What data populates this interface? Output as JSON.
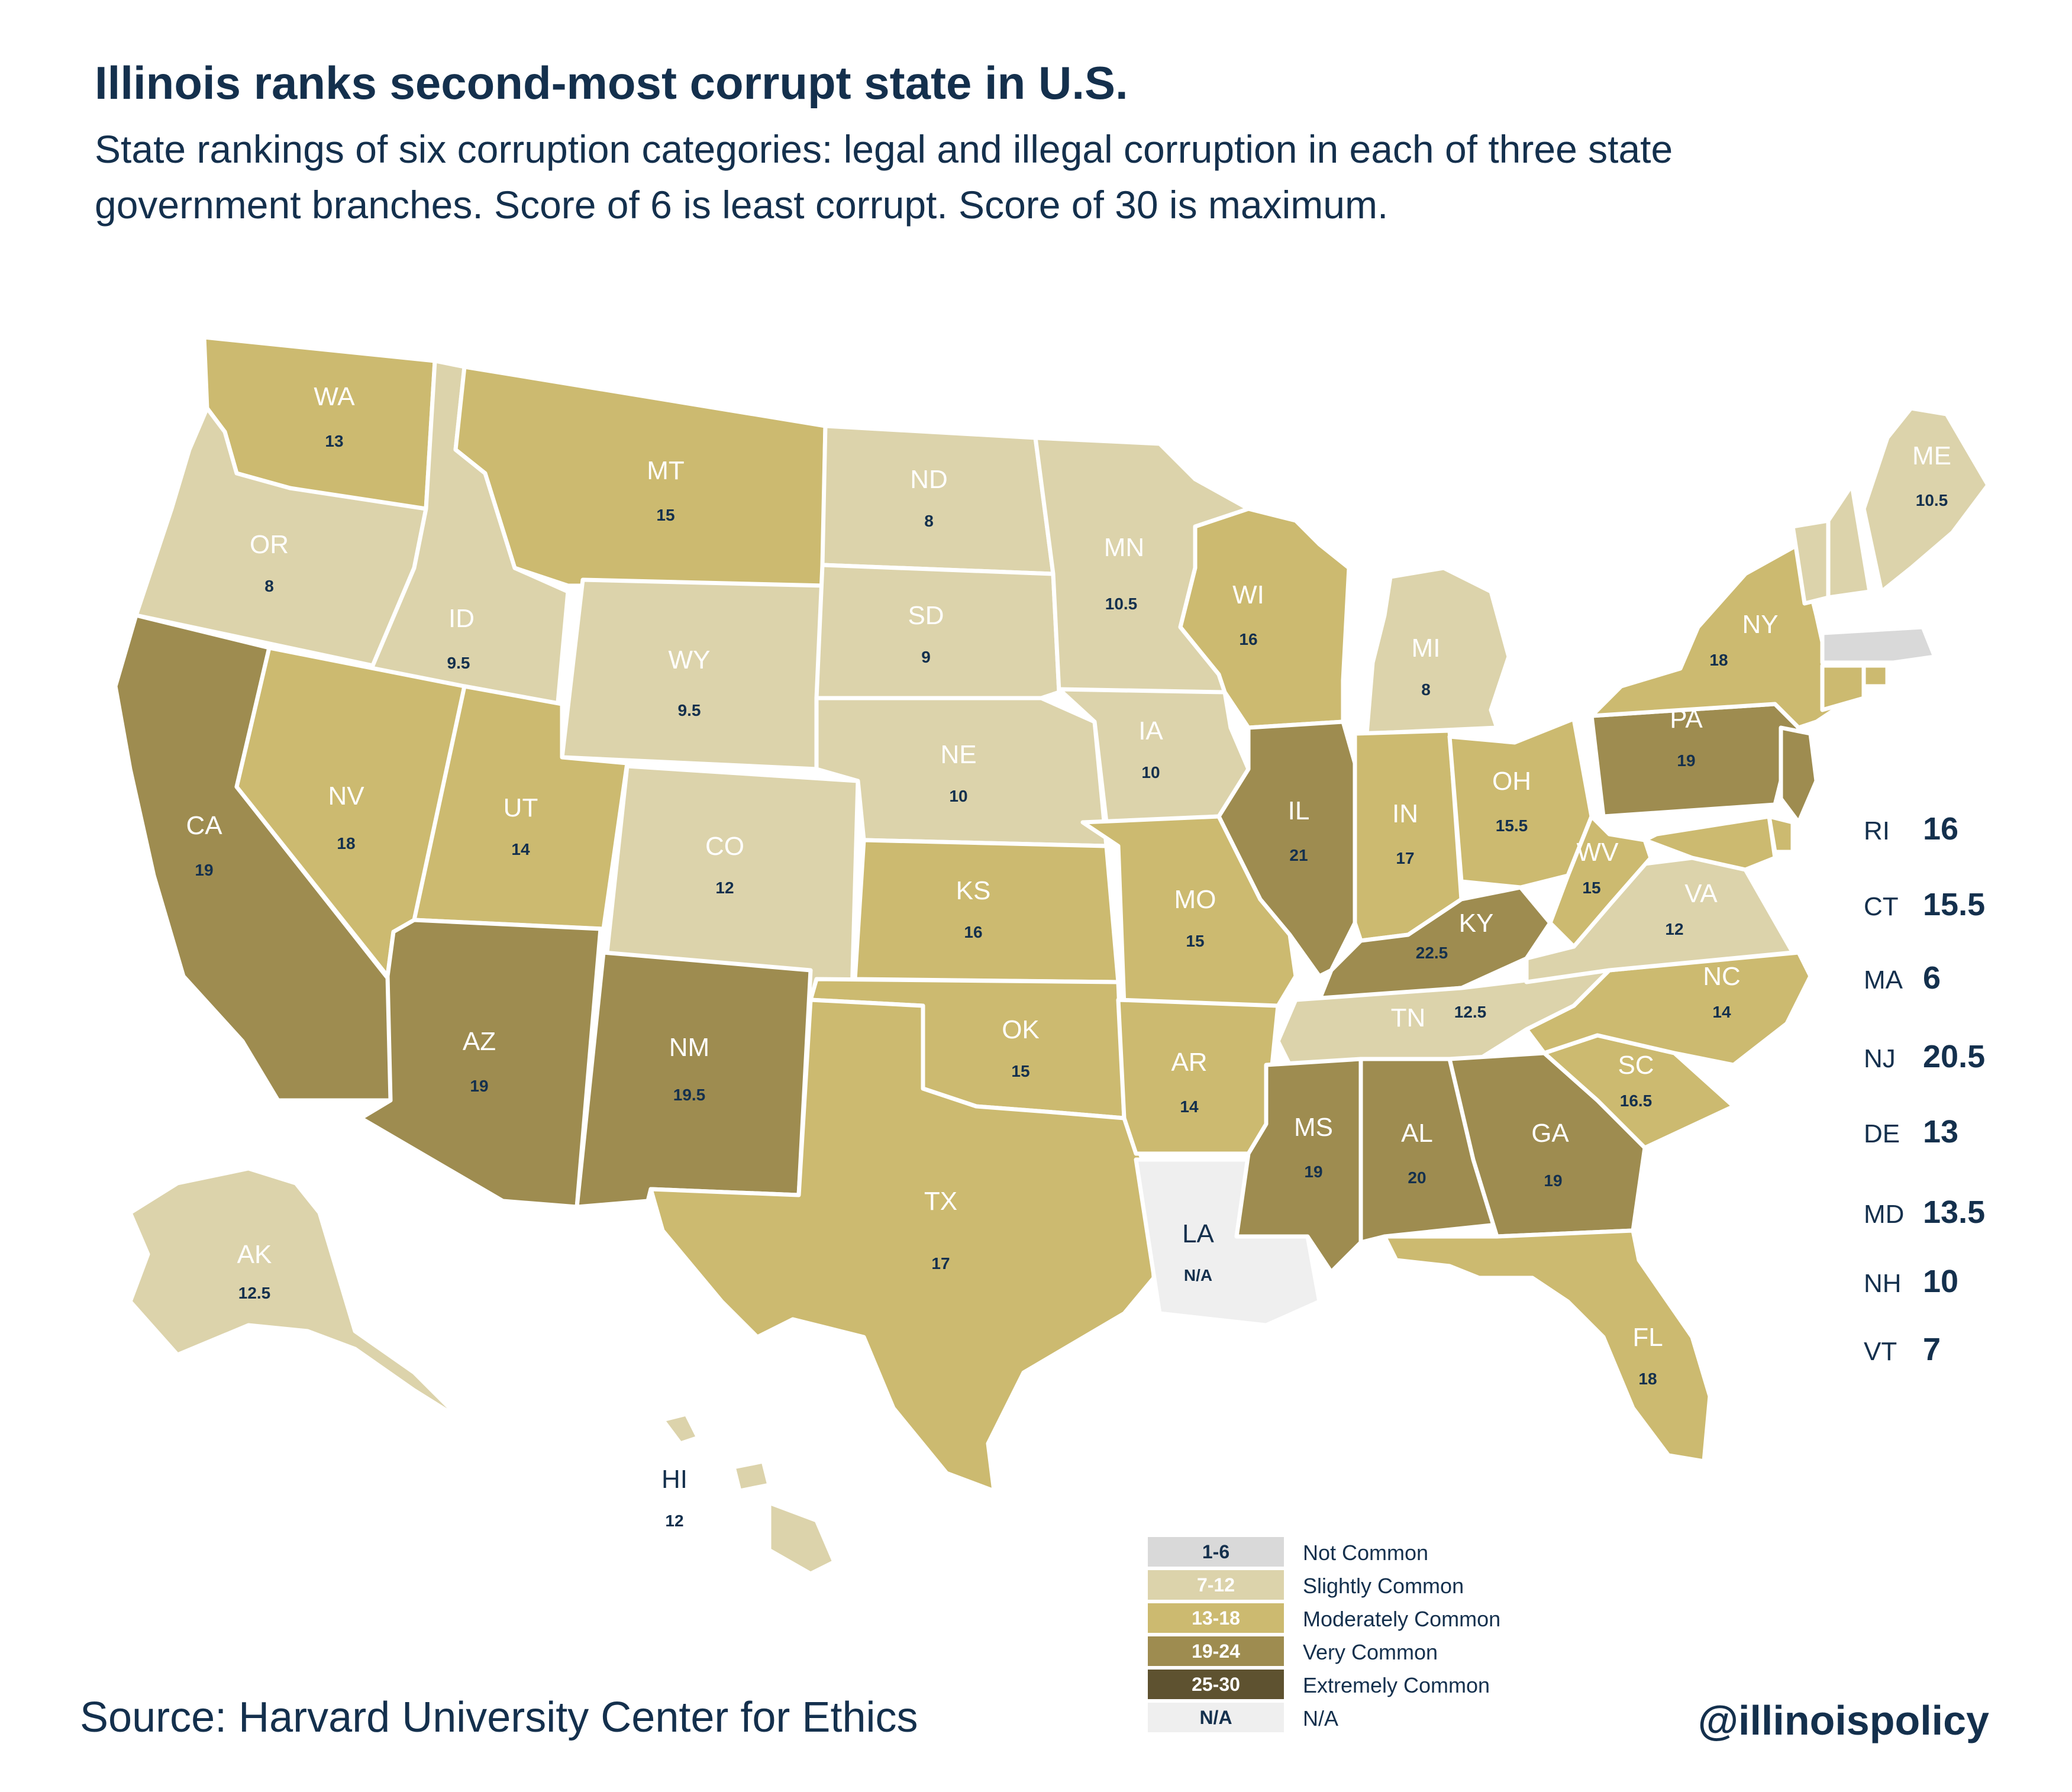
{
  "title": "Illinois ranks second-most corrupt state in U.S.",
  "subtitle": "State rankings of six corruption categories: legal and illegal corruption in each of three state government branches. Score of 6 is least corrupt. Score of 30 is maximum.",
  "colors": {
    "not_common": "#d9d9d9",
    "slightly_common": "#dcd3ab",
    "moderately_common": "#ccba70",
    "very_common": "#9e8c50",
    "extremely_common": "#5e5230",
    "na": "#efefef",
    "text": "#14304d",
    "border": "#ffffff"
  },
  "states": [
    {
      "abbr": "WA",
      "value": "13",
      "cat": "moderately_common"
    },
    {
      "abbr": "OR",
      "value": "8",
      "cat": "slightly_common"
    },
    {
      "abbr": "CA",
      "value": "19",
      "cat": "very_common"
    },
    {
      "abbr": "ID",
      "value": "9.5",
      "cat": "slightly_common"
    },
    {
      "abbr": "NV",
      "value": "18",
      "cat": "moderately_common"
    },
    {
      "abbr": "MT",
      "value": "15",
      "cat": "moderately_common"
    },
    {
      "abbr": "WY",
      "value": "9.5",
      "cat": "slightly_common"
    },
    {
      "abbr": "UT",
      "value": "14",
      "cat": "moderately_common"
    },
    {
      "abbr": "AZ",
      "value": "19",
      "cat": "very_common"
    },
    {
      "abbr": "CO",
      "value": "12",
      "cat": "slightly_common"
    },
    {
      "abbr": "NM",
      "value": "19.5",
      "cat": "very_common"
    },
    {
      "abbr": "ND",
      "value": "8",
      "cat": "slightly_common"
    },
    {
      "abbr": "SD",
      "value": "9",
      "cat": "slightly_common"
    },
    {
      "abbr": "NE",
      "value": "10",
      "cat": "slightly_common"
    },
    {
      "abbr": "KS",
      "value": "16",
      "cat": "moderately_common"
    },
    {
      "abbr": "OK",
      "value": "15",
      "cat": "moderately_common"
    },
    {
      "abbr": "TX",
      "value": "17",
      "cat": "moderately_common"
    },
    {
      "abbr": "MN",
      "value": "10.5",
      "cat": "slightly_common"
    },
    {
      "abbr": "IA",
      "value": "10",
      "cat": "slightly_common"
    },
    {
      "abbr": "MO",
      "value": "15",
      "cat": "moderately_common"
    },
    {
      "abbr": "AR",
      "value": "14",
      "cat": "moderately_common"
    },
    {
      "abbr": "LA",
      "value": "N/A",
      "cat": "na"
    },
    {
      "abbr": "WI",
      "value": "16",
      "cat": "moderately_common"
    },
    {
      "abbr": "IL",
      "value": "21",
      "cat": "very_common"
    },
    {
      "abbr": "MI",
      "value": "8",
      "cat": "slightly_common"
    },
    {
      "abbr": "IN",
      "value": "17",
      "cat": "moderately_common"
    },
    {
      "abbr": "OH",
      "value": "15.5",
      "cat": "moderately_common"
    },
    {
      "abbr": "KY",
      "value": "22.5",
      "cat": "very_common"
    },
    {
      "abbr": "TN",
      "value": "12.5",
      "cat": "slightly_common"
    },
    {
      "abbr": "MS",
      "value": "19",
      "cat": "very_common"
    },
    {
      "abbr": "AL",
      "value": "20",
      "cat": "very_common"
    },
    {
      "abbr": "GA",
      "value": "19",
      "cat": "very_common"
    },
    {
      "abbr": "FL",
      "value": "18",
      "cat": "moderately_common"
    },
    {
      "abbr": "SC",
      "value": "16.5",
      "cat": "moderately_common"
    },
    {
      "abbr": "NC",
      "value": "14",
      "cat": "moderately_common"
    },
    {
      "abbr": "VA",
      "value": "12",
      "cat": "slightly_common"
    },
    {
      "abbr": "WV",
      "value": "15",
      "cat": "moderately_common"
    },
    {
      "abbr": "PA",
      "value": "19",
      "cat": "very_common"
    },
    {
      "abbr": "NY",
      "value": "18",
      "cat": "moderately_common"
    },
    {
      "abbr": "ME",
      "value": "10.5",
      "cat": "slightly_common"
    },
    {
      "abbr": "AK",
      "value": "12.5",
      "cat": "slightly_common"
    },
    {
      "abbr": "HI",
      "value": "12",
      "cat": "slightly_common"
    }
  ],
  "small_states": [
    {
      "abbr": "RI",
      "value": "16",
      "cat": "moderately_common"
    },
    {
      "abbr": "CT",
      "value": "15.5",
      "cat": "moderately_common"
    },
    {
      "abbr": "MA",
      "value": "6",
      "cat": "not_common"
    },
    {
      "abbr": "NJ",
      "value": "20.5",
      "cat": "very_common"
    },
    {
      "abbr": "DE",
      "value": "13",
      "cat": "moderately_common"
    },
    {
      "abbr": "MD",
      "value": "13.5",
      "cat": "moderately_common"
    },
    {
      "abbr": "NH",
      "value": "10",
      "cat": "slightly_common"
    },
    {
      "abbr": "VT",
      "value": "7",
      "cat": "slightly_common"
    }
  ],
  "legend": [
    {
      "range": "1-6",
      "label": "Not Common",
      "cat": "not_common"
    },
    {
      "range": "7-12",
      "label": "Slightly Common",
      "cat": "slightly_common"
    },
    {
      "range": "13-18",
      "label": "Moderately Common",
      "cat": "moderately_common"
    },
    {
      "range": "19-24",
      "label": "Very Common",
      "cat": "very_common"
    },
    {
      "range": "25-30",
      "label": "Extremely Common",
      "cat": "extremely_common"
    },
    {
      "range": "N/A",
      "label": "N/A",
      "cat": "na"
    }
  ],
  "source": "Source: Harvard University Center for Ethics",
  "handle": "@illinoispolicy"
}
